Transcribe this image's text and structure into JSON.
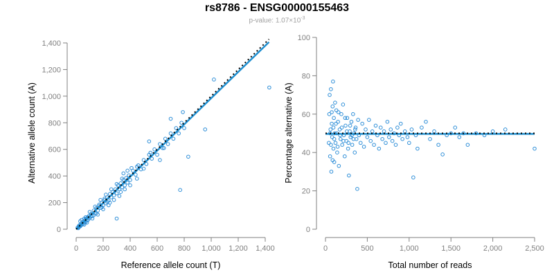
{
  "title": "rs8786 - ENSG00000155463",
  "subtitle": {
    "label": "p-value: 1.07×10",
    "exponent": "-3"
  },
  "colors": {
    "points": "#2f8fd8",
    "fit": "#1f8fd0",
    "reference": "#000000",
    "axis": "#808080"
  },
  "chart_data": [
    {
      "type": "scatter",
      "xlabel": "Reference allele count (T)",
      "ylabel": "Alternative allele count (A)",
      "xlim": [
        0,
        1400
      ],
      "ylim": [
        0,
        1400
      ],
      "xticks": [
        "0",
        "200",
        "400",
        "600",
        "800",
        "1,000",
        "1,200",
        "1,400"
      ],
      "yticks": [
        "0",
        "200",
        "400",
        "600",
        "800",
        "1,000",
        "1,200",
        "1,400"
      ],
      "fit_line": {
        "slope": 0.985,
        "intercept": 0,
        "style": "solid"
      },
      "reference_line": {
        "slope": 1.0,
        "intercept": 0,
        "style": "dotted"
      },
      "points": [
        [
          10,
          12
        ],
        [
          15,
          8
        ],
        [
          20,
          25
        ],
        [
          22,
          18
        ],
        [
          25,
          30
        ],
        [
          30,
          22
        ],
        [
          35,
          40
        ],
        [
          40,
          33
        ],
        [
          45,
          50
        ],
        [
          50,
          38
        ],
        [
          55,
          60
        ],
        [
          60,
          48
        ],
        [
          65,
          70
        ],
        [
          70,
          55
        ],
        [
          75,
          80
        ],
        [
          80,
          65
        ],
        [
          85,
          90
        ],
        [
          90,
          72
        ],
        [
          95,
          100
        ],
        [
          100,
          85
        ],
        [
          110,
          115
        ],
        [
          120,
          100
        ],
        [
          130,
          140
        ],
        [
          140,
          120
        ],
        [
          150,
          160
        ],
        [
          160,
          140
        ],
        [
          170,
          175
        ],
        [
          180,
          160
        ],
        [
          190,
          200
        ],
        [
          200,
          180
        ],
        [
          210,
          220
        ],
        [
          220,
          195
        ],
        [
          230,
          240
        ],
        [
          240,
          215
        ],
        [
          250,
          265
        ],
        [
          260,
          240
        ],
        [
          270,
          280
        ],
        [
          280,
          255
        ],
        [
          290,
          300
        ],
        [
          300,
          270
        ],
        [
          310,
          330
        ],
        [
          320,
          300
        ],
        [
          330,
          345
        ],
        [
          340,
          315
        ],
        [
          350,
          370
        ],
        [
          360,
          330
        ],
        [
          370,
          385
        ],
        [
          380,
          350
        ],
        [
          390,
          405
        ],
        [
          400,
          370
        ],
        [
          420,
          440
        ],
        [
          440,
          410
        ],
        [
          460,
          480
        ],
        [
          480,
          450
        ],
        [
          500,
          520
        ],
        [
          520,
          490
        ],
        [
          540,
          560
        ],
        [
          560,
          530
        ],
        [
          580,
          600
        ],
        [
          600,
          560
        ],
        [
          620,
          640
        ],
        [
          640,
          610
        ],
        [
          660,
          680
        ],
        [
          680,
          640
        ],
        [
          700,
          720
        ],
        [
          720,
          680
        ],
        [
          740,
          760
        ],
        [
          760,
          720
        ],
        [
          780,
          800
        ],
        [
          800,
          760
        ],
        [
          30,
          60
        ],
        [
          40,
          70
        ],
        [
          60,
          35
        ],
        [
          80,
          50
        ],
        [
          100,
          130
        ],
        [
          120,
          80
        ],
        [
          140,
          170
        ],
        [
          160,
          110
        ],
        [
          180,
          220
        ],
        [
          200,
          150
        ],
        [
          220,
          260
        ],
        [
          240,
          180
        ],
        [
          260,
          300
        ],
        [
          280,
          220
        ],
        [
          300,
          340
        ],
        [
          320,
          250
        ],
        [
          340,
          380
        ],
        [
          360,
          300
        ],
        [
          380,
          440
        ],
        [
          400,
          330
        ],
        [
          150,
          120
        ],
        [
          250,
          200
        ],
        [
          350,
          420
        ],
        [
          450,
          470
        ],
        [
          550,
          575
        ],
        [
          650,
          610
        ],
        [
          450,
          380
        ],
        [
          540,
          660
        ],
        [
          700,
          830
        ],
        [
          300,
          80
        ],
        [
          770,
          295
        ],
        [
          830,
          545
        ],
        [
          955,
          750
        ],
        [
          1020,
          1125
        ],
        [
          1430,
          1065
        ],
        [
          790,
          880
        ],
        [
          620,
          520
        ],
        [
          500,
          455
        ],
        [
          410,
          460
        ],
        [
          330,
          280
        ],
        [
          170,
          185
        ],
        [
          190,
          165
        ],
        [
          210,
          230
        ],
        [
          230,
          205
        ],
        [
          110,
          95
        ],
        [
          130,
          105
        ],
        [
          60,
          80
        ],
        [
          70,
          90
        ],
        [
          20,
          15
        ],
        [
          35,
          28
        ]
      ]
    },
    {
      "type": "scatter",
      "xlabel": "Total number of reads",
      "ylabel": "Percentage alternative (A)",
      "xlim": [
        0,
        2500
      ],
      "ylim": [
        0,
        100
      ],
      "xticks": [
        "0",
        "500",
        "1,000",
        "1,500",
        "2,000",
        "2,500"
      ],
      "yticks": [
        "0",
        "20",
        "40",
        "60",
        "80",
        "100"
      ],
      "fit_line": {
        "slope": 0,
        "intercept": 49.7,
        "x_end": 2500,
        "style": "solid"
      },
      "reference_line": {
        "slope": 0,
        "intercept": 50,
        "x_end": 2500,
        "style": "dotted"
      },
      "points": [
        [
          40,
          45
        ],
        [
          45,
          60
        ],
        [
          50,
          70
        ],
        [
          55,
          38
        ],
        [
          60,
          52
        ],
        [
          65,
          73
        ],
        [
          70,
          30
        ],
        [
          75,
          55
        ],
        [
          80,
          48
        ],
        [
          85,
          64
        ],
        [
          90,
          77
        ],
        [
          95,
          42
        ],
        [
          100,
          58
        ],
        [
          105,
          35
        ],
        [
          110,
          50
        ],
        [
          115,
          66
        ],
        [
          120,
          45
        ],
        [
          130,
          62
        ],
        [
          140,
          40
        ],
        [
          150,
          56
        ],
        [
          160,
          33
        ],
        [
          170,
          52
        ],
        [
          180,
          47
        ],
        [
          190,
          60
        ],
        [
          200,
          44
        ],
        [
          210,
          65
        ],
        [
          220,
          49
        ],
        [
          230,
          38
        ],
        [
          240,
          54
        ],
        [
          250,
          46
        ],
        [
          260,
          58
        ],
        [
          270,
          42
        ],
        [
          280,
          28
        ],
        [
          290,
          51
        ],
        [
          300,
          48
        ],
        [
          310,
          56
        ],
        [
          320,
          44
        ],
        [
          330,
          60
        ],
        [
          340,
          50
        ],
        [
          350,
          40
        ],
        [
          360,
          53
        ],
        [
          370,
          47
        ],
        [
          380,
          21
        ],
        [
          390,
          57
        ],
        [
          400,
          49
        ],
        [
          420,
          45
        ],
        [
          440,
          55
        ],
        [
          460,
          43
        ],
        [
          480,
          52
        ],
        [
          500,
          48
        ],
        [
          520,
          57
        ],
        [
          540,
          46
        ],
        [
          560,
          51
        ],
        [
          580,
          44
        ],
        [
          600,
          54
        ],
        [
          620,
          49
        ],
        [
          640,
          42
        ],
        [
          660,
          53
        ],
        [
          680,
          47
        ],
        [
          700,
          51
        ],
        [
          720,
          45
        ],
        [
          740,
          56
        ],
        [
          760,
          48
        ],
        [
          780,
          52
        ],
        [
          800,
          46
        ],
        [
          820,
          50
        ],
        [
          840,
          44
        ],
        [
          860,
          53
        ],
        [
          880,
          49
        ],
        [
          900,
          55
        ],
        [
          920,
          47
        ],
        [
          950,
          51
        ],
        [
          980,
          48
        ],
        [
          1000,
          45
        ],
        [
          1030,
          52
        ],
        [
          1050,
          27
        ],
        [
          1080,
          49
        ],
        [
          1100,
          42
        ],
        [
          1150,
          53
        ],
        [
          1200,
          56
        ],
        [
          1250,
          47
        ],
        [
          1300,
          51
        ],
        [
          1350,
          44
        ],
        [
          1400,
          39
        ],
        [
          1450,
          49
        ],
        [
          1500,
          50
        ],
        [
          1550,
          53
        ],
        [
          1600,
          48
        ],
        [
          1650,
          50
        ],
        [
          1700,
          44
        ],
        [
          1800,
          50
        ],
        [
          1900,
          49
        ],
        [
          2000,
          51
        ],
        [
          2150,
          52
        ],
        [
          2500,
          42
        ],
        [
          55,
          50
        ],
        [
          65,
          44
        ],
        [
          75,
          61
        ],
        [
          85,
          36
        ],
        [
          95,
          53
        ],
        [
          105,
          47
        ],
        [
          125,
          55
        ],
        [
          135,
          50
        ],
        [
          145,
          43
        ],
        [
          155,
          61
        ],
        [
          175,
          49
        ],
        [
          195,
          53
        ],
        [
          215,
          46
        ],
        [
          235,
          58
        ],
        [
          255,
          51
        ],
        [
          275,
          45
        ],
        [
          295,
          54
        ],
        [
          315,
          49
        ],
        [
          335,
          47
        ],
        [
          355,
          52
        ]
      ]
    }
  ]
}
